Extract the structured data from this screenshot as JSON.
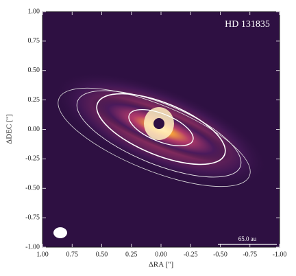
{
  "chart_data": {
    "type": "image",
    "annotation": "HD 131835",
    "scalebar_label": "65.0 au",
    "x_label": "ΔRA [\"]",
    "y_label": "ΔDEC [\"]",
    "xlim": [
      1,
      -1
    ],
    "ylim": [
      -1,
      1
    ],
    "xticks": [
      {
        "value": 1,
        "label": "1.00"
      },
      {
        "value": 0.75,
        "label": "0.75"
      },
      {
        "value": 0.5,
        "label": "0.50"
      },
      {
        "value": 0.25,
        "label": "0.25"
      },
      {
        "value": 0,
        "label": "0.00"
      },
      {
        "value": -0.25,
        "label": "-0.25"
      },
      {
        "value": -0.5,
        "label": "-0.50"
      },
      {
        "value": -0.75,
        "label": "-0.75"
      },
      {
        "value": -1,
        "label": "-1.00"
      }
    ],
    "yticks": [
      {
        "value": -1,
        "label": "-1.00"
      },
      {
        "value": -0.75,
        "label": "-0.75"
      },
      {
        "value": -0.5,
        "label": "-0.50"
      },
      {
        "value": -0.25,
        "label": "-0.25"
      },
      {
        "value": 0,
        "label": "0.00"
      },
      {
        "value": 0.25,
        "label": "0.25"
      },
      {
        "value": 0.5,
        "label": "0.50"
      },
      {
        "value": 0.75,
        "label": "0.75"
      },
      {
        "value": 1,
        "label": "1.00"
      }
    ]
  }
}
